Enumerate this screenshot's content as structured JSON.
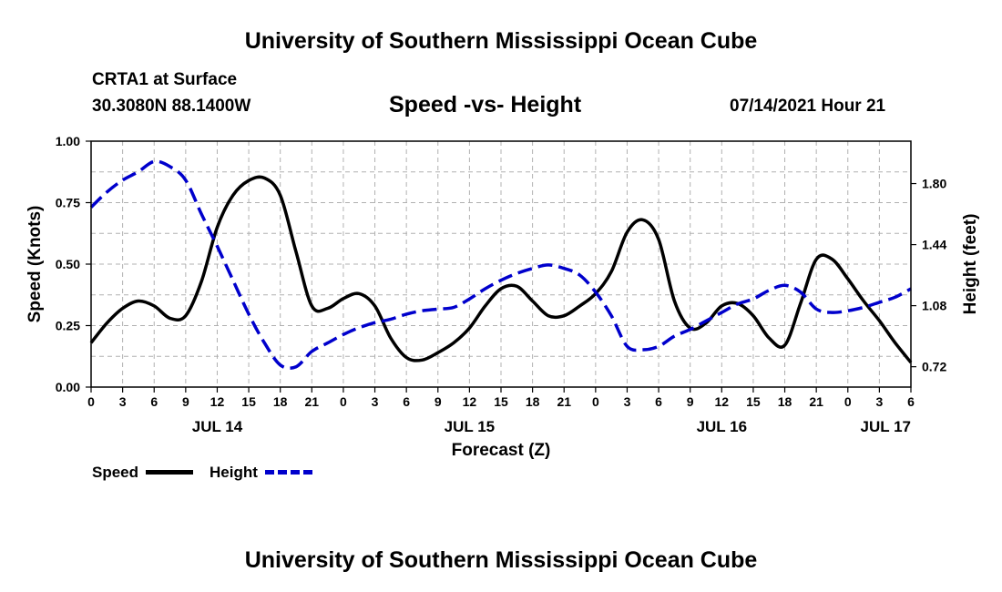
{
  "header": {
    "title": "University of Southern Mississippi Ocean Cube",
    "station": "CRTA1 at Surface",
    "coords": "30.3080N  88.1400W",
    "date": "07/14/2021 Hour 21"
  },
  "footer": {
    "title": "University of Southern Mississippi Ocean Cube"
  },
  "legend": {
    "speed_label": "Speed",
    "height_label": "Height"
  },
  "colors": {
    "speed": "#000000",
    "height": "#0000cc",
    "grid": "#b0b0b0"
  },
  "chart_data": {
    "type": "line",
    "title": "Speed -vs- Height",
    "xlabel": "Forecast (Z)",
    "ylabel": "Speed (Knots)",
    "y2label": "Height (feet)",
    "xlim": [
      0,
      78
    ],
    "ylim": [
      0,
      1
    ],
    "y2lim": [
      0.6,
      2.05
    ],
    "x_ticks": [
      0,
      3,
      6,
      9,
      12,
      15,
      18,
      21,
      24,
      27,
      30,
      33,
      36,
      39,
      42,
      45,
      48,
      51,
      54,
      57,
      60,
      63,
      66,
      69,
      72,
      75,
      78
    ],
    "x_tick_labels": [
      "0",
      "3",
      "6",
      "9",
      "12",
      "15",
      "18",
      "21",
      "0",
      "3",
      "6",
      "9",
      "12",
      "15",
      "18",
      "21",
      "0",
      "3",
      "6",
      "9",
      "12",
      "15",
      "18",
      "21",
      "0",
      "3",
      "6"
    ],
    "y_ticks": [
      0,
      0.25,
      0.5,
      0.75,
      1.0
    ],
    "y_tick_labels": [
      "0.00",
      "0.25",
      "0.50",
      "0.75",
      "1.00"
    ],
    "y2_ticks": [
      0.72,
      1.08,
      1.44,
      1.8
    ],
    "y2_tick_labels": [
      "0.72",
      "1.08",
      "1.44",
      "1.80"
    ],
    "date_labels": [
      {
        "x": 12,
        "label": "JUL 14"
      },
      {
        "x": 36,
        "label": "JUL 15"
      },
      {
        "x": 60,
        "label": "JUL 16"
      },
      {
        "x": 78,
        "label": "JUL 17"
      }
    ],
    "series": [
      {
        "name": "Speed",
        "axis": "left",
        "style": "solid",
        "x": [
          0,
          1.5,
          3,
          4.5,
          6,
          7.5,
          9,
          10.5,
          12,
          13.5,
          15,
          16.5,
          18,
          19.5,
          21,
          22.5,
          24,
          25.5,
          27,
          28.5,
          30,
          31.5,
          33,
          34.5,
          36,
          37.5,
          39,
          40.5,
          42,
          43.5,
          45,
          46.5,
          48,
          49.5,
          51,
          52.5,
          54,
          55.5,
          57,
          58.5,
          60,
          61.5,
          63,
          64.5,
          66,
          67.5,
          69,
          70.5,
          72,
          73.5,
          75,
          76.5,
          78
        ],
        "values": [
          0.18,
          0.26,
          0.32,
          0.35,
          0.33,
          0.28,
          0.29,
          0.43,
          0.65,
          0.78,
          0.84,
          0.85,
          0.78,
          0.55,
          0.33,
          0.32,
          0.36,
          0.38,
          0.33,
          0.2,
          0.12,
          0.11,
          0.14,
          0.18,
          0.24,
          0.33,
          0.4,
          0.41,
          0.35,
          0.29,
          0.29,
          0.33,
          0.38,
          0.47,
          0.63,
          0.68,
          0.6,
          0.35,
          0.24,
          0.26,
          0.33,
          0.34,
          0.29,
          0.2,
          0.17,
          0.34,
          0.52,
          0.52,
          0.44,
          0.35,
          0.27,
          0.18,
          0.1
        ]
      },
      {
        "name": "Height",
        "axis": "right",
        "style": "dashed",
        "x": [
          0,
          1.5,
          3,
          4.5,
          6,
          7.5,
          9,
          10.5,
          12,
          13.5,
          15,
          16.5,
          18,
          19.5,
          21,
          22.5,
          24,
          25.5,
          27,
          28.5,
          30,
          31.5,
          33,
          34.5,
          36,
          37.5,
          39,
          40.5,
          42,
          43.5,
          45,
          46.5,
          48,
          49.5,
          51,
          52.5,
          54,
          55.5,
          57,
          58.5,
          60,
          61.5,
          63,
          64.5,
          66,
          67.5,
          69,
          70.5,
          72,
          73.5,
          75,
          76.5,
          78
        ],
        "values": [
          1.66,
          1.75,
          1.82,
          1.87,
          1.93,
          1.9,
          1.82,
          1.62,
          1.43,
          1.23,
          1.03,
          0.86,
          0.73,
          0.72,
          0.81,
          0.86,
          0.91,
          0.95,
          0.98,
          1.0,
          1.03,
          1.05,
          1.06,
          1.07,
          1.12,
          1.18,
          1.23,
          1.27,
          1.3,
          1.32,
          1.3,
          1.26,
          1.16,
          1.02,
          0.84,
          0.82,
          0.84,
          0.9,
          0.94,
          0.99,
          1.04,
          1.09,
          1.12,
          1.17,
          1.2,
          1.16,
          1.06,
          1.04,
          1.05,
          1.07,
          1.1,
          1.13,
          1.18
        ]
      }
    ]
  }
}
